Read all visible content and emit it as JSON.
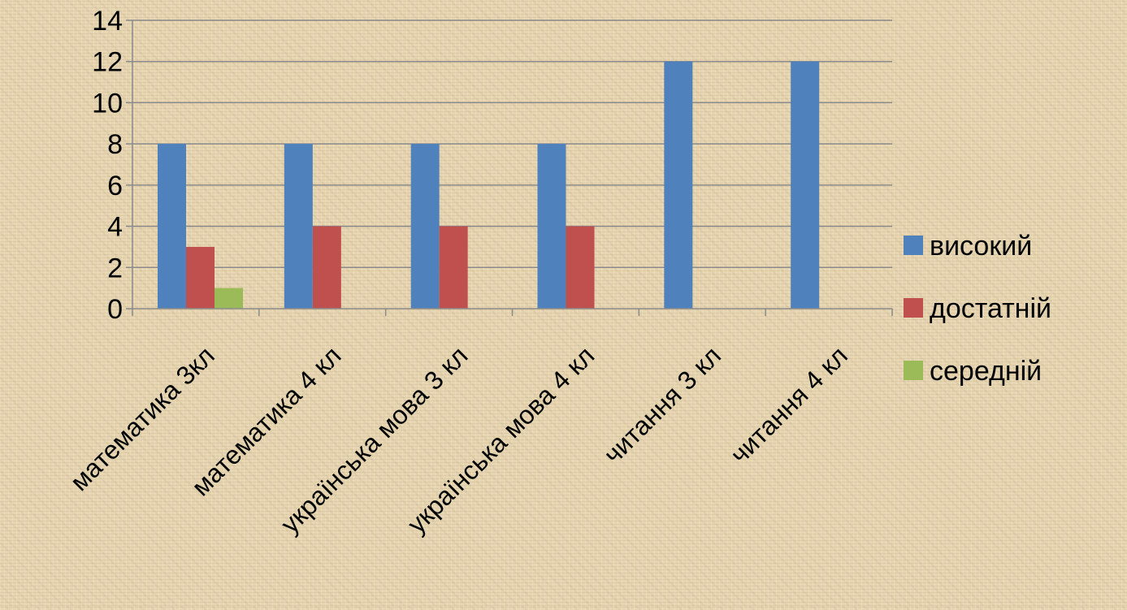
{
  "chart_data": {
    "type": "bar",
    "title": "",
    "xlabel": "",
    "ylabel": "",
    "ylim": [
      0,
      14
    ],
    "yticks": [
      0,
      2,
      4,
      6,
      8,
      10,
      12,
      14
    ],
    "grid": true,
    "legend_position": "right",
    "categories": [
      "математика 3кл",
      "математика 4 кл",
      "українська мова 3 кл",
      "українська мова 4 кл",
      "читання 3 кл",
      "читання 4 кл"
    ],
    "series": [
      {
        "name": "високий",
        "color": "#4f81bd",
        "values": [
          8,
          8,
          8,
          8,
          12,
          12
        ]
      },
      {
        "name": "достатній",
        "color": "#c0504d",
        "values": [
          3,
          4,
          4,
          4,
          0,
          0
        ]
      },
      {
        "name": "середній",
        "color": "#9bbb59",
        "values": [
          1,
          0,
          0,
          0,
          0,
          0
        ]
      }
    ]
  }
}
